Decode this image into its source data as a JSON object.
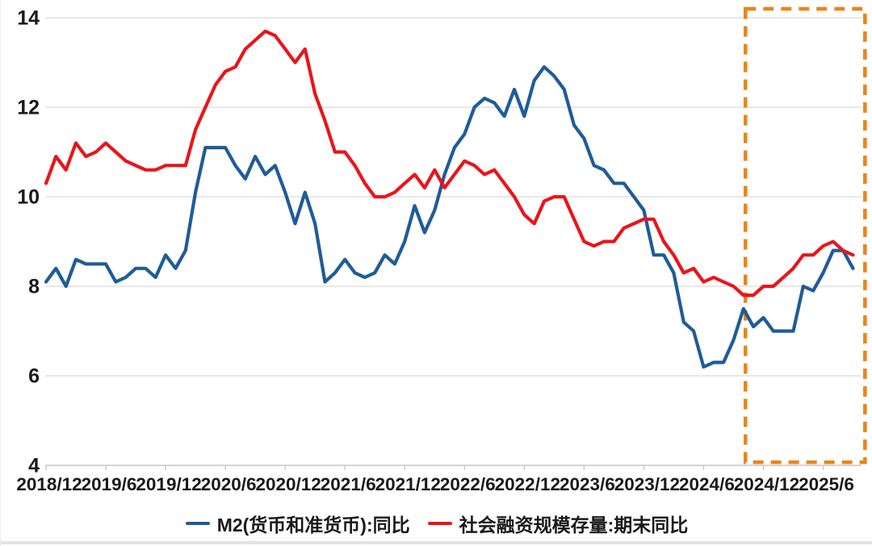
{
  "chart_data": {
    "type": "line",
    "title": "",
    "xlabel": "",
    "ylabel": "",
    "ylim": [
      4,
      14
    ],
    "y_ticks": [
      4,
      6,
      8,
      10,
      12,
      14
    ],
    "x_tick_labels": [
      "2018/12",
      "2019/6",
      "2019/12",
      "2020/6",
      "2020/12",
      "2021/6",
      "2021/12",
      "2022/6",
      "2022/12",
      "2023/6",
      "2023/12",
      "2024/6",
      "2024/12",
      "2025/6"
    ],
    "x_frequency": "monthly",
    "x_range": [
      "2018/12",
      "2025/9"
    ],
    "grid": true,
    "legend_position": "bottom",
    "series": [
      {
        "id": "m2",
        "name": "M2(货币和准货币):同比",
        "color": "#1F5C98",
        "values": [
          8.1,
          8.4,
          8.0,
          8.6,
          8.5,
          8.5,
          8.5,
          8.1,
          8.2,
          8.4,
          8.4,
          8.2,
          8.7,
          8.4,
          8.8,
          10.1,
          11.1,
          11.1,
          11.1,
          10.7,
          10.4,
          10.9,
          10.5,
          10.7,
          10.1,
          9.4,
          10.1,
          9.4,
          8.1,
          8.3,
          8.6,
          8.3,
          8.2,
          8.3,
          8.7,
          8.5,
          9.0,
          9.8,
          9.2,
          9.7,
          10.5,
          11.1,
          11.4,
          12.0,
          12.2,
          12.1,
          11.8,
          12.4,
          11.8,
          12.6,
          12.9,
          12.7,
          12.4,
          11.6,
          11.3,
          10.7,
          10.6,
          10.3,
          10.3,
          10.0,
          9.7,
          8.7,
          8.7,
          8.3,
          7.2,
          7.0,
          6.2,
          6.3,
          6.3,
          6.8,
          7.5,
          7.1,
          7.3,
          7.0,
          7.0,
          7.0,
          8.0,
          7.9,
          8.3,
          8.8,
          8.8,
          8.4
        ]
      },
      {
        "id": "tsf",
        "name": "社会融资规模存量:期末同比",
        "color": "#E9151B",
        "values": [
          10.3,
          10.9,
          10.6,
          11.2,
          10.9,
          11.0,
          11.2,
          11.0,
          10.8,
          10.7,
          10.6,
          10.6,
          10.7,
          10.7,
          10.7,
          11.5,
          12.0,
          12.5,
          12.8,
          12.9,
          13.3,
          13.5,
          13.7,
          13.6,
          13.3,
          13.0,
          13.3,
          12.3,
          11.7,
          11.0,
          11.0,
          10.7,
          10.3,
          10.0,
          10.0,
          10.1,
          10.3,
          10.5,
          10.2,
          10.6,
          10.2,
          10.5,
          10.8,
          10.7,
          10.5,
          10.6,
          10.3,
          10.0,
          9.6,
          9.4,
          9.9,
          10.0,
          10.0,
          9.5,
          9.0,
          8.9,
          9.0,
          9.0,
          9.3,
          9.4,
          9.5,
          9.5,
          9.0,
          8.7,
          8.3,
          8.4,
          8.1,
          8.2,
          8.1,
          8.0,
          7.8,
          7.8,
          8.0,
          8.0,
          8.2,
          8.4,
          8.7,
          8.7,
          8.9,
          9.0,
          8.8,
          8.7
        ]
      }
    ],
    "highlight_box": {
      "from_month_index": 70.2,
      "to_month_index": 82.2,
      "v_top": 14.2,
      "v_bottom": 4.07,
      "color": "#E8861C"
    },
    "style": {
      "grid_color": "#D9D9D9",
      "axis_color": "#C6C6C6",
      "text_color": "#1A1A1A"
    }
  }
}
